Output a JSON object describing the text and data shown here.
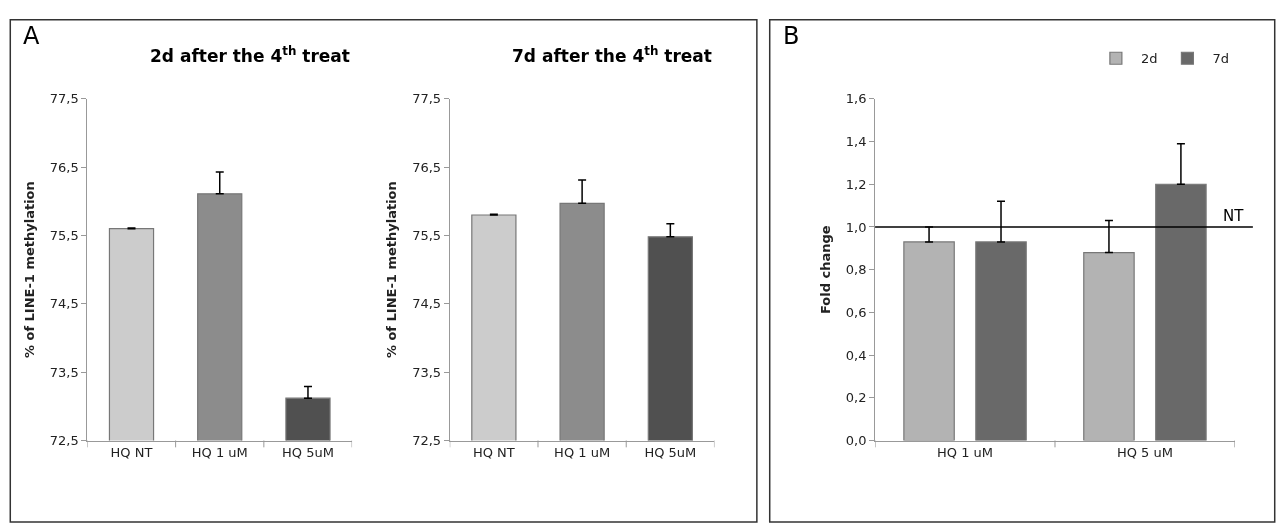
{
  "chart_data": [
    {
      "type": "bar",
      "title": "2d after the 4$^{th}$ treat",
      "ylabel": "% of LINE-1 methylation",
      "annotations": [
        "A"
      ],
      "categories": [
        "HQ NT",
        "HQ 1 uM",
        "HQ 5uM"
      ],
      "values": [
        75.6,
        76.11,
        73.12
      ],
      "colors": [
        "#cccccc",
        "#8c8c8c",
        "#505050"
      ],
      "errors": [
        [
          75.6,
          75.61
        ],
        [
          76.11,
          76.43
        ],
        [
          73.12,
          73.29
        ]
      ],
      "ylim": [
        72.5,
        77.5
      ],
      "yticks": [
        {
          "value": 72.5,
          "label": "72,5"
        },
        {
          "value": 73.5,
          "label": "73,5"
        },
        {
          "value": 74.5,
          "label": "74,5"
        },
        {
          "value": 75.5,
          "label": "75,5"
        },
        {
          "value": 76.5,
          "label": "76,5"
        },
        {
          "value": 77.5,
          "label": "77,5"
        }
      ]
    },
    {
      "type": "bar",
      "title": "7d after the 4$^{th}$ treat",
      "ylabel": "% of LINE-1 methylation",
      "categories": [
        "HQ NT",
        "HQ 1 uM",
        "HQ 5uM"
      ],
      "values": [
        75.8,
        75.97,
        75.48
      ],
      "colors": [
        "#cccccc",
        "#8c8c8c",
        "#505050"
      ],
      "errors": [
        [
          75.8,
          75.81
        ],
        [
          75.97,
          76.31
        ],
        [
          75.48,
          75.67
        ]
      ],
      "ylim": [
        72.5,
        77.5
      ],
      "yticks": [
        {
          "value": 72.5,
          "label": "72,5"
        },
        {
          "value": 73.5,
          "label": "73,5"
        },
        {
          "value": 74.5,
          "label": "74,5"
        },
        {
          "value": 75.5,
          "label": "75,5"
        },
        {
          "value": 76.5,
          "label": "76,5"
        },
        {
          "value": 77.5,
          "label": "77,5"
        }
      ]
    },
    {
      "type": "bar",
      "ylabel": "Fold change",
      "annotations": [
        "B"
      ],
      "categories": [
        "HQ 1 uM",
        "HQ 5 uM"
      ],
      "series": [
        {
          "name": "2d",
          "color": "#b3b3b3",
          "values": [
            0.93,
            0.88
          ],
          "errors": [
            [
              0.93,
              1.0
            ],
            [
              0.88,
              1.03
            ]
          ]
        },
        {
          "name": "7d",
          "color": "#696969",
          "values": [
            0.93,
            1.2
          ],
          "errors": [
            [
              0.93,
              1.12
            ],
            [
              1.2,
              1.39
            ]
          ]
        }
      ],
      "ref_lines": [
        {
          "axis": "y",
          "value": 1.0,
          "label": "NT",
          "color": "#000000"
        }
      ],
      "ylim": [
        0,
        1.6
      ],
      "yticks": [
        {
          "value": 0,
          "label": "0,0"
        },
        {
          "value": 0.2,
          "label": "0,2"
        },
        {
          "value": 0.4,
          "label": "0,4"
        },
        {
          "value": 0.6,
          "label": "0,6"
        },
        {
          "value": 0.8,
          "label": "0,8"
        },
        {
          "value": 1.0,
          "label": "1,0"
        },
        {
          "value": 1.2,
          "label": "1,2"
        },
        {
          "value": 1.4,
          "label": "1,4"
        },
        {
          "value": 1.6,
          "label": "1,6"
        }
      ],
      "legend": "top right"
    }
  ]
}
